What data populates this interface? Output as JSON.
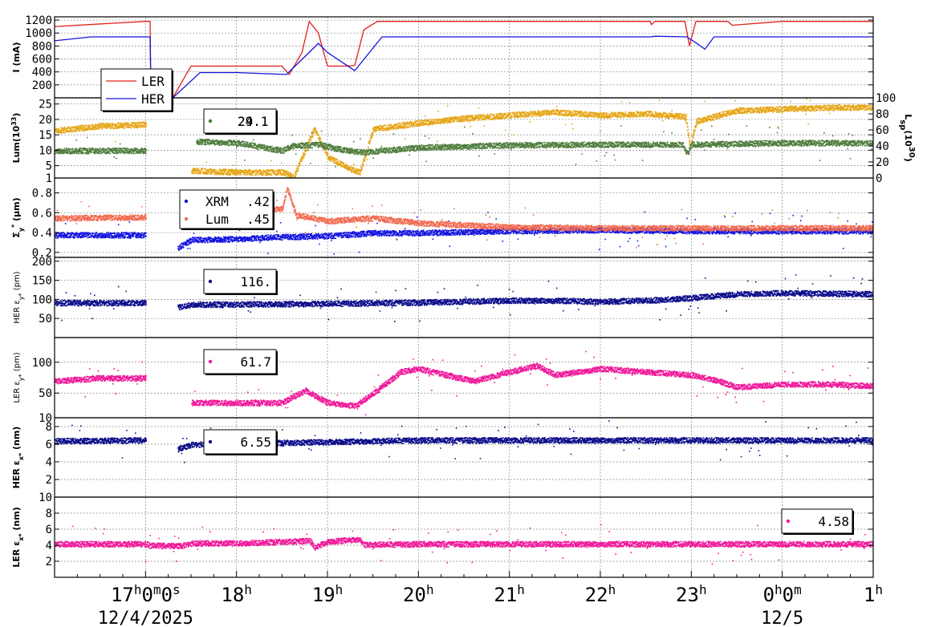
{
  "chart_data": [
    {
      "id": "current",
      "type": "line",
      "ylabel": "I (mA)",
      "yticks": [
        200,
        400,
        600,
        800,
        1000,
        1200
      ],
      "ylim": [
        0,
        1250
      ],
      "grid": true,
      "legend_placement": "bottom-left",
      "series": [
        {
          "name": "LER",
          "color": "#e0201a",
          "x": [
            16.0,
            17.0,
            17.05,
            17.06,
            17.3,
            17.5,
            18.0,
            18.5,
            18.58,
            18.72,
            18.8,
            18.9,
            19.0,
            19.2,
            19.3,
            19.4,
            19.55,
            20.0,
            22.55,
            22.56,
            22.6,
            22.93,
            22.98,
            23.05,
            23.4,
            23.45,
            24.0,
            25.0
          ],
          "y": [
            1100,
            1180,
            1180,
            0,
            0,
            490,
            490,
            490,
            360,
            700,
            1180,
            1000,
            490,
            490,
            500,
            1050,
            1180,
            1180,
            1180,
            1130,
            1180,
            1180,
            800,
            1180,
            1180,
            1120,
            1180,
            1180
          ]
        },
        {
          "name": "HER",
          "color": "#1414e0",
          "x": [
            16.0,
            16.4,
            17.0,
            17.05,
            17.06,
            17.3,
            17.6,
            18.0,
            18.55,
            18.9,
            19.0,
            19.3,
            19.6,
            20.0,
            22.55,
            22.6,
            22.95,
            23.05,
            23.15,
            23.25,
            25.0
          ],
          "y": [
            880,
            940,
            940,
            940,
            0,
            0,
            390,
            390,
            360,
            840,
            700,
            420,
            940,
            940,
            940,
            950,
            940,
            850,
            750,
            940,
            940
          ]
        }
      ]
    },
    {
      "id": "luminosity",
      "type": "scatter",
      "ylabel": "Lum(10^33)",
      "ylabel_parts": {
        "main": "Lum(10",
        "sup": "33",
        "close": ")"
      },
      "yticks": [
        1,
        5,
        10,
        15,
        20,
        25
      ],
      "ylim": [
        1,
        27
      ],
      "y2label": "Lsp(10^30)",
      "y2label_parts": {
        "main": "L",
        "sub": "sp",
        "paren": "(10",
        "sup": "30",
        "close": ")"
      },
      "y2ticks": [
        0,
        20,
        40,
        60,
        80,
        100
      ],
      "y2lim": [
        0,
        100
      ],
      "legend_values": [
        "24.1",
        "29.1"
      ],
      "series": [
        {
          "name": "",
          "color": "#e6a617",
          "x": [
            16.0,
            16.5,
            17.0,
            17.05,
            17.4,
            17.5,
            18.0,
            18.5,
            18.62,
            18.75,
            18.85,
            19.0,
            19.25,
            19.35,
            19.5,
            20.0,
            20.5,
            21.0,
            21.5,
            22.0,
            22.5,
            22.93,
            22.98,
            23.05,
            23.5,
            24.0,
            24.5,
            25.0
          ],
          "y": [
            16.5,
            18,
            18.5,
            null,
            null,
            3.5,
            3,
            3,
            1.5,
            10,
            17,
            8,
            4,
            3,
            17,
            19,
            20.5,
            21.5,
            22.5,
            21.5,
            22,
            21,
            11,
            19.5,
            23,
            23.5,
            24,
            24
          ]
        },
        {
          "name": "",
          "color": "#4f7d3d",
          "x": [
            16.0,
            16.5,
            17.0,
            17.05,
            17.4,
            17.55,
            18.0,
            18.5,
            18.6,
            18.9,
            19.2,
            19.4,
            19.6,
            20.0,
            21.0,
            22.0,
            22.9,
            22.95,
            23.0,
            24.0,
            25.0
          ],
          "y": [
            10,
            10,
            10,
            null,
            null,
            13,
            12.5,
            10,
            11.5,
            12,
            10,
            9.5,
            10,
            11,
            11.8,
            12,
            12,
            9,
            12,
            12.5,
            12.5
          ]
        }
      ]
    },
    {
      "id": "sigma-y",
      "type": "scatter",
      "ylabel": "Σy* (µm)",
      "ylabel_parts": {
        "main": "Σ",
        "sub": "y",
        "sup": "*",
        "unit": " (µm)"
      },
      "yticks": [
        0.2,
        0.4,
        0.6,
        0.8
      ],
      "ylim": [
        0.15,
        0.95
      ],
      "series": [
        {
          "name": "XRM",
          "color": "#1414e0",
          "legend_value": ".42",
          "x": [
            16.0,
            17.0,
            17.05,
            17.35,
            17.5,
            18.0,
            18.5,
            19.0,
            19.5,
            20.0,
            21.0,
            22.0,
            23.0,
            24.0,
            25.0
          ],
          "y": [
            0.38,
            0.38,
            null,
            0.25,
            0.33,
            0.34,
            0.36,
            0.37,
            0.4,
            0.4,
            0.42,
            0.43,
            0.42,
            0.42,
            0.42
          ]
        },
        {
          "name": "Lum",
          "color": "#f26a50",
          "legend_value": ".45",
          "x": [
            16.0,
            17.0,
            17.05,
            17.5,
            18.0,
            18.5,
            18.55,
            18.65,
            19.0,
            19.5,
            20.0,
            21.0,
            22.0,
            23.0,
            24.0,
            25.0
          ],
          "y": [
            0.55,
            0.56,
            null,
            0.6,
            0.6,
            0.65,
            0.85,
            0.58,
            0.52,
            0.55,
            0.5,
            0.46,
            0.45,
            0.45,
            0.45,
            0.45
          ]
        }
      ]
    },
    {
      "id": "her-epsy",
      "type": "scatter",
      "ylabel": "HER εy* (pm)",
      "ylabel_parts": {
        "main": "HER ε",
        "sub": "y*",
        "unit": " (pm)"
      },
      "yticks": [
        50,
        100,
        150,
        200
      ],
      "ylim": [
        0,
        210
      ],
      "series": [
        {
          "name": "",
          "color": "#0b0b8a",
          "legend_value": "116.",
          "x": [
            16.0,
            17.0,
            17.05,
            17.35,
            17.5,
            18.0,
            19.0,
            20.0,
            21.0,
            21.5,
            22.0,
            22.7,
            23.0,
            23.5,
            24.0,
            25.0
          ],
          "y": [
            92,
            92,
            null,
            80,
            88,
            88,
            90,
            93,
            98,
            98,
            95,
            100,
            105,
            115,
            118,
            115
          ]
        }
      ]
    },
    {
      "id": "ler-epsy",
      "type": "scatter",
      "ylabel": "LER εy* (pm)",
      "ylabel_parts": {
        "main": "LER ε",
        "sub": "y*",
        "unit": " (pm)"
      },
      "yticks": [
        10,
        50,
        100
      ],
      "ylim": [
        10,
        140
      ],
      "series": [
        {
          "name": "",
          "color": "#f0189a",
          "legend_value": "61.7",
          "x": [
            16.0,
            16.5,
            17.0,
            17.05,
            17.5,
            18.0,
            18.5,
            18.75,
            19.0,
            19.3,
            19.5,
            19.8,
            20.0,
            20.3,
            20.6,
            21.0,
            21.3,
            21.5,
            22.0,
            22.5,
            23.0,
            23.3,
            23.5,
            24.0,
            24.5,
            25.0
          ],
          "y": [
            70,
            75,
            75,
            null,
            35,
            35,
            35,
            55,
            35,
            30,
            50,
            85,
            90,
            80,
            70,
            85,
            95,
            80,
            90,
            85,
            80,
            70,
            60,
            65,
            65,
            62
          ]
        }
      ]
    },
    {
      "id": "her-epsx",
      "type": "scatter",
      "ylabel": "HER εx* (nm)",
      "ylabel_parts": {
        "main": "HER ε",
        "sub": "x*",
        "unit": " (nm)"
      },
      "yticks": [
        2,
        4,
        6,
        8
      ],
      "ylim": [
        0,
        9
      ],
      "series": [
        {
          "name": "",
          "color": "#0b0b8a",
          "legend_value": "6.55",
          "x": [
            16.0,
            17.0,
            17.05,
            17.35,
            17.5,
            18.0,
            19.0,
            20.0,
            21.0,
            22.0,
            23.0,
            24.0,
            25.0
          ],
          "y": [
            6.4,
            6.5,
            null,
            5.5,
            6.0,
            6.1,
            6.3,
            6.5,
            6.5,
            6.5,
            6.5,
            6.5,
            6.5
          ]
        }
      ]
    },
    {
      "id": "ler-epsx",
      "type": "scatter",
      "ylabel": "LER εx* (nm)",
      "ylabel_parts": {
        "main": "LER ε",
        "sub": "x*",
        "unit": " (nm)"
      },
      "yticks": [
        2,
        4,
        6,
        8,
        10
      ],
      "ylim": [
        0,
        10
      ],
      "series": [
        {
          "name": "",
          "color": "#f0189a",
          "legend_value": "4.58",
          "x": [
            16.0,
            17.0,
            17.05,
            17.4,
            17.5,
            18.0,
            18.8,
            18.85,
            19.0,
            19.35,
            19.4,
            20.0,
            21.0,
            22.0,
            23.0,
            24.0,
            25.0
          ],
          "y": [
            4.2,
            4.2,
            4.0,
            4.0,
            4.3,
            4.3,
            4.6,
            3.8,
            4.5,
            4.8,
            4.1,
            4.2,
            4.2,
            4.2,
            4.2,
            4.2,
            4.2
          ]
        }
      ]
    }
  ],
  "x_axis": {
    "range_hours": [
      16.0,
      25.0
    ],
    "labels": [
      {
        "hour": 17,
        "text": "17h0m0s"
      },
      {
        "hour": 18,
        "text": "18h"
      },
      {
        "hour": 19,
        "text": "19h"
      },
      {
        "hour": 20,
        "text": "20h"
      },
      {
        "hour": 21,
        "text": "21h"
      },
      {
        "hour": 22,
        "text": "22h"
      },
      {
        "hour": 23,
        "text": "23h"
      },
      {
        "hour": 24,
        "text": "0h0m"
      },
      {
        "hour": 25,
        "text": "1h"
      }
    ],
    "dates": [
      {
        "hour": 17,
        "text": "12/4/2025"
      },
      {
        "hour": 24,
        "text": "12/5"
      }
    ]
  }
}
